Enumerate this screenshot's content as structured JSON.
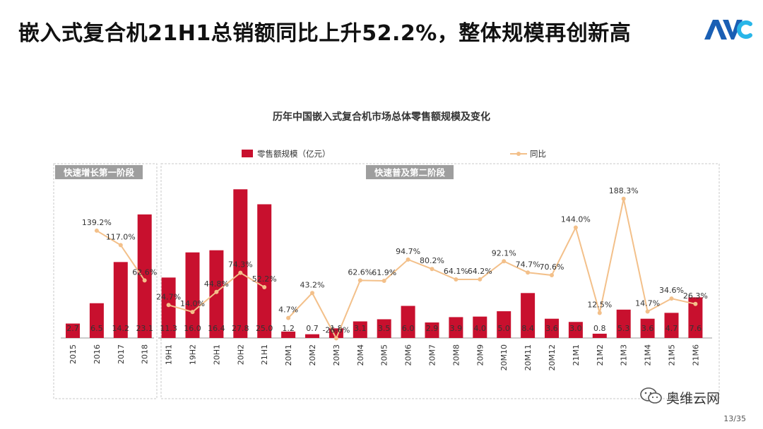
{
  "headline": "嵌入式复合机21H1总销额同比上升52.2%，整体规模再创新高",
  "brand_logo": "AVC",
  "watermark": {
    "name": "奥维云网",
    "icon": "wechat-icon"
  },
  "page_number": "13/35",
  "colors": {
    "bar": "#c8102e",
    "line": "#f3c08a",
    "text": "#333333",
    "panel_border": "#c8c8c8",
    "panel_label_bg": "#9e9e9e",
    "logo_blue": "#1a5fb4",
    "logo_cyan": "#29b6e8"
  },
  "chart_data": {
    "type": "bar",
    "title": "历年中国嵌入式复合机市场总体零售额规模及变化",
    "legend": {
      "bar": "零售额规模（亿元）",
      "line": "同比",
      "placement": "top"
    },
    "panels": [
      {
        "label": "快速增长第一阶段",
        "categories": [
          "2015",
          "2016",
          "2017",
          "2018"
        ]
      },
      {
        "label": "快速普及第二阶段",
        "categories": [
          "19H1",
          "19H2",
          "20H1",
          "20H2",
          "21H1",
          "20M1",
          "20M2",
          "20M3",
          "20M4",
          "20M5",
          "20M6",
          "20M7",
          "20M8",
          "20M9",
          "20M10",
          "20M11",
          "20M12",
          "21M1",
          "21M2",
          "21M3",
          "21M4",
          "21M5",
          "21M6"
        ]
      }
    ],
    "categories": [
      "2015",
      "2016",
      "2017",
      "2018",
      "19H1",
      "19H2",
      "20H1",
      "20H2",
      "21H1",
      "20M1",
      "20M2",
      "20M3",
      "20M4",
      "20M5",
      "20M6",
      "20M7",
      "20M8",
      "20M9",
      "20M10",
      "20M11",
      "20M12",
      "21M1",
      "21M2",
      "21M3",
      "21M4",
      "21M5",
      "21M6"
    ],
    "series": [
      {
        "name": "零售额规模（亿元）",
        "type": "bar",
        "values": [
          2.7,
          6.5,
          14.2,
          23.1,
          11.3,
          16.0,
          16.4,
          27.8,
          25.0,
          1.2,
          0.7,
          1.8,
          3.1,
          3.5,
          6.0,
          2.9,
          3.9,
          4.0,
          5.0,
          8.4,
          3.6,
          3.0,
          0.8,
          5.3,
          3.6,
          4.7,
          7.6
        ],
        "labels": [
          "2.7",
          "6.5",
          "14.2",
          "23.1",
          "11.3",
          "16.0",
          "16.4",
          "27.8",
          "25.0",
          "1.2",
          "0.7",
          "1.8",
          "3.1",
          "3.5",
          "6.0",
          "2.9",
          "3.9",
          "4.0",
          "5.0",
          "8.4",
          "3.6",
          "3.0",
          "0.8",
          "5.3",
          "3.6",
          "4.7",
          "7.6"
        ]
      },
      {
        "name": "同比",
        "type": "line",
        "segments": [
          {
            "x": [
              "2016",
              "2017",
              "2018"
            ],
            "values": [
              139.2,
              117.0,
              62.6
            ],
            "labels": [
              "139.2%",
              "117.0%",
              "62.6%"
            ]
          },
          {
            "x": [
              "19H1",
              "19H2",
              "20H1",
              "20H2",
              "21H1"
            ],
            "values": [
              24.7,
              14.0,
              44.8,
              74.3,
              52.2
            ],
            "labels": [
              "24.7%",
              "14.0%",
              "44.8%",
              "74.3%",
              "52.2%"
            ]
          },
          {
            "x": [
              "20M1",
              "20M2",
              "20M3",
              "20M4",
              "20M5",
              "20M6",
              "20M7",
              "20M8",
              "20M9",
              "20M10",
              "20M11",
              "20M12",
              "21M1",
              "21M2",
              "21M3",
              "21M4",
              "21M5",
              "21M6"
            ],
            "values": [
              4.7,
              43.2,
              -26.6,
              62.6,
              61.9,
              94.7,
              80.2,
              64.1,
              64.2,
              92.1,
              74.7,
              70.6,
              144.0,
              12.5,
              188.3,
              14.7,
              34.6,
              26.3
            ],
            "labels": [
              "4.7%",
              "43.2%",
              "-26.6%",
              "62.6%",
              "61.9%",
              "94.7%",
              "80.2%",
              "64.1%",
              "64.2%",
              "92.1%",
              "74.7%",
              "70.6%",
              "144.0%",
              "12.5%",
              "188.3%",
              "14.7%",
              "34.6%",
              "26.3%"
            ]
          }
        ]
      }
    ]
  }
}
